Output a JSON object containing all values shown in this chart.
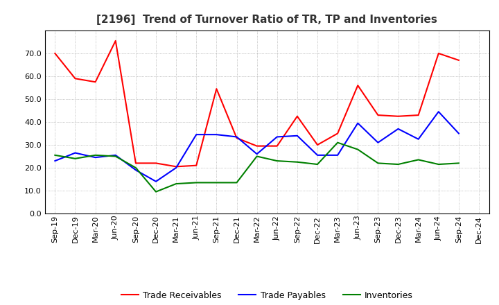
{
  "title": "[2196]  Trend of Turnover Ratio of TR, TP and Inventories",
  "x_labels": [
    "Sep-19",
    "Dec-19",
    "Mar-20",
    "Jun-20",
    "Sep-20",
    "Dec-20",
    "Mar-21",
    "Jun-21",
    "Sep-21",
    "Dec-21",
    "Mar-22",
    "Jun-22",
    "Sep-22",
    "Dec-22",
    "Mar-23",
    "Jun-23",
    "Sep-23",
    "Dec-23",
    "Mar-24",
    "Jun-24",
    "Sep-24",
    "Dec-24"
  ],
  "trade_receivables": [
    70.0,
    59.0,
    57.5,
    75.5,
    22.0,
    22.0,
    20.5,
    21.0,
    54.5,
    33.0,
    29.5,
    29.5,
    42.5,
    30.0,
    35.0,
    56.0,
    43.0,
    42.5,
    43.0,
    70.0,
    67.0,
    null
  ],
  "trade_payables": [
    23.0,
    26.5,
    24.5,
    25.5,
    19.0,
    14.0,
    20.0,
    34.5,
    34.5,
    33.5,
    26.0,
    33.5,
    34.0,
    25.5,
    25.5,
    39.5,
    31.0,
    37.0,
    32.5,
    44.5,
    35.0,
    null
  ],
  "inventories": [
    25.5,
    24.0,
    25.5,
    25.0,
    20.0,
    9.5,
    13.0,
    13.5,
    13.5,
    13.5,
    25.0,
    23.0,
    22.5,
    21.5,
    31.0,
    28.0,
    22.0,
    21.5,
    23.5,
    21.5,
    22.0,
    null
  ],
  "tr_color": "#FF0000",
  "tp_color": "#0000FF",
  "inv_color": "#008000",
  "ylim": [
    0.0,
    80.0
  ],
  "yticks": [
    0.0,
    10.0,
    20.0,
    30.0,
    40.0,
    50.0,
    60.0,
    70.0
  ],
  "background_color": "#FFFFFF",
  "grid_color": "#999999",
  "title_fontsize": 11,
  "legend_fontsize": 9,
  "tick_fontsize": 8,
  "line_width": 1.5
}
